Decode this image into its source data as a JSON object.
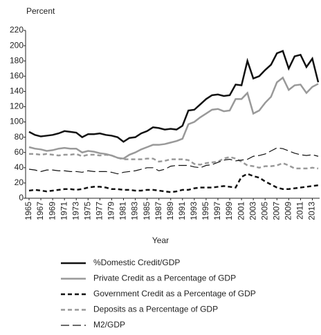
{
  "chart_data": {
    "type": "line",
    "y_label": "Percent",
    "x_label": "Year",
    "x": [
      1965,
      1966,
      1967,
      1968,
      1969,
      1970,
      1971,
      1972,
      1973,
      1974,
      1975,
      1976,
      1977,
      1978,
      1979,
      1980,
      1981,
      1982,
      1983,
      1984,
      1985,
      1986,
      1987,
      1988,
      1989,
      1990,
      1991,
      1992,
      1993,
      1994,
      1995,
      1996,
      1997,
      1998,
      1999,
      2000,
      2001,
      2002,
      2003,
      2004,
      2005,
      2006,
      2007,
      2008,
      2009,
      2010,
      2011,
      2012,
      2013,
      2014
    ],
    "xlim": [
      1965,
      2014
    ],
    "xticks": [
      1965,
      1967,
      1969,
      1971,
      1973,
      1975,
      1977,
      1979,
      1981,
      1983,
      1985,
      1987,
      1989,
      1991,
      1993,
      1995,
      1997,
      1999,
      2001,
      2003,
      2005,
      2007,
      2009,
      2011,
      2013
    ],
    "ylim": [
      0,
      220
    ],
    "yticks": [
      0,
      20,
      40,
      60,
      80,
      100,
      120,
      140,
      160,
      180,
      200,
      220
    ],
    "grid": false,
    "series": [
      {
        "name": "%Domestic Credit/GDP",
        "color": "#111111",
        "width": 2.5,
        "dash": "solid",
        "values": [
          87,
          83,
          81,
          82,
          83,
          85,
          88,
          87,
          86,
          80,
          84,
          84,
          85,
          83,
          82,
          80,
          74,
          79,
          80,
          85,
          88,
          93,
          92,
          90,
          91,
          90,
          95,
          115,
          116,
          123,
          130,
          135,
          136,
          134,
          135,
          149,
          148,
          180,
          157,
          160,
          168,
          175,
          190,
          193,
          170,
          186,
          188,
          172,
          183,
          152
        ]
      },
      {
        "name": "Private Credit as a Percentage of GDP",
        "color": "#999999",
        "width": 2.5,
        "dash": "solid",
        "values": [
          67,
          65,
          64,
          62,
          63,
          65,
          66,
          65,
          65,
          60,
          62,
          61,
          59,
          58,
          56,
          53,
          52,
          57,
          60,
          64,
          67,
          70,
          70,
          71,
          73,
          75,
          78,
          97,
          100,
          106,
          111,
          116,
          117,
          114,
          115,
          130,
          130,
          138,
          111,
          115,
          125,
          133,
          152,
          158,
          142,
          148,
          149,
          138,
          146,
          150
        ]
      },
      {
        "name": "Government Credit as a Percentage of GDP",
        "color": "#111111",
        "width": 2.5,
        "dash": "dashed",
        "values": [
          10,
          11,
          10,
          9,
          10,
          11,
          12,
          12,
          11,
          12,
          14,
          15,
          15,
          14,
          12,
          12,
          11,
          11,
          10,
          10,
          11,
          11,
          10,
          9,
          8,
          9,
          11,
          11,
          13,
          14,
          14,
          14,
          15,
          16,
          15,
          14,
          28,
          32,
          29,
          27,
          22,
          18,
          14,
          12,
          12,
          13,
          14,
          15,
          16,
          17
        ]
      },
      {
        "name": "Deposits as a Percentage of GDP",
        "color": "#999999",
        "width": 2.5,
        "dash": "dashed",
        "values": [
          58,
          58,
          57,
          58,
          57,
          56,
          57,
          57,
          58,
          55,
          57,
          57,
          56,
          57,
          56,
          53,
          51,
          51,
          51,
          51,
          52,
          52,
          48,
          49,
          51,
          51,
          51,
          50,
          45,
          44,
          46,
          47,
          48,
          52,
          54,
          52,
          48,
          43,
          42,
          40,
          42,
          42,
          43,
          46,
          43,
          39,
          39,
          39,
          40,
          39
        ]
      },
      {
        "name": "M2/GDP",
        "color": "#111111",
        "width": 1.2,
        "dash": "longdash",
        "values": [
          38,
          37,
          35,
          37,
          37,
          36,
          36,
          35,
          35,
          34,
          36,
          35,
          35,
          35,
          34,
          32,
          34,
          35,
          36,
          38,
          40,
          40,
          36,
          38,
          42,
          43,
          43,
          43,
          41,
          40,
          43,
          44,
          47,
          50,
          51,
          49,
          50,
          51,
          55,
          56,
          58,
          62,
          66,
          65,
          62,
          59,
          57,
          56,
          57,
          55
        ]
      }
    ]
  }
}
